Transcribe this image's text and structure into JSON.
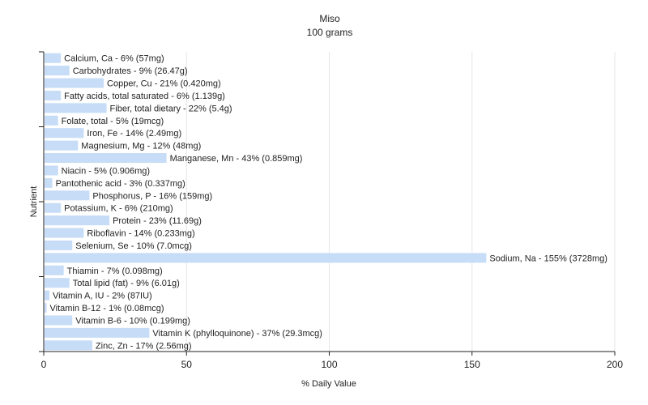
{
  "chart_data": {
    "type": "bar",
    "orientation": "horizontal",
    "title": "Miso",
    "subtitle": "100 grams",
    "xlabel": "% Daily Value",
    "ylabel": "Nutrient",
    "xlim": [
      0,
      200
    ],
    "xticks": [
      0,
      50,
      100,
      150,
      200
    ],
    "grid": true,
    "bar_color": "#c6dcf7",
    "categories": [
      "Calcium, Ca",
      "Carbohydrates",
      "Copper, Cu",
      "Fatty acids, total saturated",
      "Fiber, total dietary",
      "Folate, total",
      "Iron, Fe",
      "Magnesium, Mg",
      "Manganese, Mn",
      "Niacin",
      "Pantothenic acid",
      "Phosphorus, P",
      "Potassium, K",
      "Protein",
      "Riboflavin",
      "Selenium, Se",
      "Sodium, Na",
      "Thiamin",
      "Total lipid (fat)",
      "Vitamin A, IU",
      "Vitamin B-12",
      "Vitamin B-6",
      "Vitamin K (phylloquinone)",
      "Zinc, Zn"
    ],
    "values": [
      6,
      9,
      21,
      6,
      22,
      5,
      14,
      12,
      43,
      5,
      3,
      16,
      6,
      23,
      14,
      10,
      155,
      7,
      9,
      2,
      1,
      10,
      37,
      17
    ],
    "labels": [
      "Calcium, Ca - 6% (57mg)",
      "Carbohydrates - 9% (26.47g)",
      "Copper, Cu - 21% (0.420mg)",
      "Fatty acids, total saturated - 6% (1.139g)",
      "Fiber, total dietary - 22% (5.4g)",
      "Folate, total - 5% (19mcg)",
      "Iron, Fe - 14% (2.49mg)",
      "Magnesium, Mg - 12% (48mg)",
      "Manganese, Mn - 43% (0.859mg)",
      "Niacin - 5% (0.906mg)",
      "Pantothenic acid - 3% (0.337mg)",
      "Phosphorus, P - 16% (159mg)",
      "Potassium, K - 6% (210mg)",
      "Protein - 23% (11.69g)",
      "Riboflavin - 14% (0.233mg)",
      "Selenium, Se - 10% (7.0mcg)",
      "Sodium, Na - 155% (3728mg)",
      "Thiamin - 7% (0.098mg)",
      "Total lipid (fat) - 9% (6.01g)",
      "Vitamin A, IU - 2% (87IU)",
      "Vitamin B-12 - 1% (0.08mcg)",
      "Vitamin B-6 - 10% (0.199mg)",
      "Vitamin K (phylloquinone) - 37% (29.3mcg)",
      "Zinc, Zn - 17% (2.56mg)"
    ]
  }
}
